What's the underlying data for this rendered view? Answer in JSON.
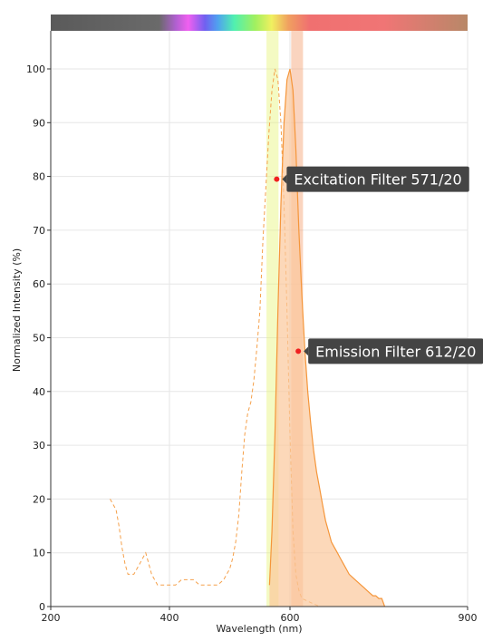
{
  "chart_data": {
    "type": "area",
    "xlabel": "Wavelength (nm)",
    "ylabel": "Normalized Intensity (%)",
    "xlim": [
      200,
      900
    ],
    "ylim": [
      0,
      105
    ],
    "x_ticks": [
      200,
      400,
      600,
      900
    ],
    "y_ticks": [
      0,
      10,
      20,
      30,
      40,
      50,
      60,
      70,
      80,
      90,
      100
    ],
    "grid": true,
    "spectrum_bar": true,
    "filters": [
      {
        "name": "Excitation Filter 571/20",
        "center": 571,
        "width": 20,
        "color": "#e6f57a",
        "marker": [
          578,
          79.5
        ]
      },
      {
        "name": "Emission Filter 612/20",
        "center": 612,
        "width": 20,
        "color": "#f3a070",
        "marker": [
          614,
          47.5
        ]
      }
    ],
    "series": [
      {
        "style": "dashed",
        "color": "#f5a04a",
        "x": [
          300,
          305,
          310,
          315,
          320,
          325,
          330,
          335,
          340,
          345,
          350,
          355,
          360,
          365,
          370,
          375,
          380,
          385,
          390,
          395,
          400,
          410,
          420,
          430,
          440,
          450,
          460,
          470,
          480,
          490,
          500,
          505,
          510,
          515,
          520,
          525,
          530,
          535,
          540,
          545,
          550,
          555,
          560,
          565,
          570,
          575,
          580,
          585,
          590,
          595,
          600,
          605,
          610,
          615,
          620,
          630,
          640,
          650
        ],
        "y": [
          20,
          19,
          18,
          15,
          11,
          8,
          6,
          6,
          6,
          7,
          8,
          9,
          10,
          8,
          6,
          5,
          4,
          4,
          4,
          4,
          4,
          4,
          5,
          5,
          5,
          4,
          4,
          4,
          4,
          5,
          7,
          9,
          12,
          17,
          25,
          32,
          36,
          38,
          42,
          48,
          55,
          68,
          78,
          88,
          96,
          100,
          98,
          90,
          75,
          55,
          32,
          14,
          6,
          3,
          1.5,
          1,
          0.5,
          0
        ]
      },
      {
        "style": "solid-filled",
        "color": "#f5963a",
        "fill": "#fbc79b",
        "x": [
          566,
          570,
          575,
          580,
          585,
          590,
          595,
          600,
          605,
          610,
          615,
          620,
          625,
          630,
          635,
          640,
          645,
          650,
          655,
          660,
          665,
          670,
          675,
          680,
          685,
          690,
          695,
          700,
          705,
          710,
          715,
          720,
          725,
          730,
          735,
          740,
          745,
          750,
          755,
          760
        ],
        "y": [
          4,
          14,
          32,
          55,
          75,
          90,
          98,
          100,
          96,
          85,
          70,
          58,
          48,
          40,
          34,
          29,
          25,
          22,
          19,
          16,
          14,
          12,
          11,
          10,
          9,
          8,
          7,
          6,
          5.5,
          5,
          4.5,
          4,
          3.5,
          3,
          2.5,
          2,
          2,
          1.5,
          1.5,
          0
        ]
      }
    ]
  }
}
